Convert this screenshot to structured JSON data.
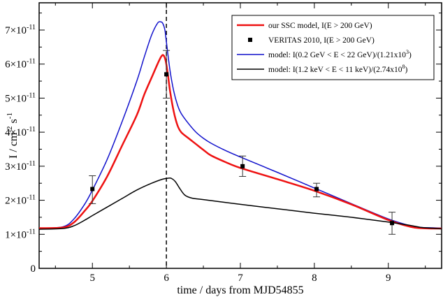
{
  "chart_data": {
    "type": "line",
    "xlabel": "time / days from MJD54855",
    "ylabel_main": "I / cm",
    "ylabel_sup1": "-2",
    "ylabel_mid": " s",
    "ylabel_sup2": "-1",
    "xlim": [
      4.28,
      9.72
    ],
    "ylim": [
      0,
      7.8
    ],
    "y_unit_exp": "-11",
    "x_ticks": [
      5,
      6,
      7,
      8,
      9
    ],
    "x_tick_labels": [
      "5",
      "6",
      "7",
      "8",
      "9"
    ],
    "y_ticks": [
      0,
      1,
      2,
      3,
      4,
      5,
      6,
      7
    ],
    "y_tick_labels": [
      "0",
      "1×10",
      "2×10",
      "3×10",
      "4×10",
      "5×10",
      "6×10",
      "7×10"
    ],
    "vline_x": 6.0,
    "legend": {
      "position": "top-right",
      "entries": [
        {
          "text": "our SSC model, I(E > 200 GeV)",
          "color": "#ee1111",
          "kind": "line"
        },
        {
          "text": "VERITAS 2010, I(E > 200 GeV)",
          "color": "#000000",
          "kind": "marker"
        },
        {
          "text": "model: I(0.2 GeV < E < 22 GeV)/(1.21x10",
          "sup": "3",
          "tail": ")",
          "color": "#1111cc",
          "kind": "line"
        },
        {
          "text": "model: I(1.2 keV < E < 11 keV)/(2.74x10",
          "sup": "8",
          "tail": ")",
          "color": "#000000",
          "kind": "line"
        }
      ]
    },
    "series": [
      {
        "color": "#1111cc",
        "width": 1.5,
        "x": [
          4.28,
          4.6,
          4.75,
          4.9,
          5.0,
          5.2,
          5.4,
          5.6,
          5.7,
          5.8,
          5.88,
          5.92,
          5.95,
          5.98,
          6.0,
          6.05,
          6.1,
          6.15,
          6.2,
          6.3,
          6.4,
          6.5,
          6.6,
          6.8,
          7.0,
          7.5,
          8.0,
          8.5,
          9.0,
          9.3,
          9.45,
          9.6,
          9.72
        ],
        "y": [
          1.18,
          1.22,
          1.45,
          1.9,
          2.3,
          3.2,
          4.3,
          5.5,
          6.2,
          6.85,
          7.2,
          7.24,
          7.2,
          7.0,
          6.65,
          5.8,
          5.2,
          4.8,
          4.55,
          4.25,
          4.0,
          3.82,
          3.68,
          3.46,
          3.27,
          2.82,
          2.36,
          1.9,
          1.45,
          1.25,
          1.2,
          1.19,
          1.18
        ]
      },
      {
        "color": "#ee1111",
        "width": 2.5,
        "x": [
          4.28,
          4.6,
          4.75,
          4.9,
          5.0,
          5.2,
          5.4,
          5.6,
          5.7,
          5.8,
          5.88,
          5.93,
          5.96,
          5.99,
          6.02,
          6.05,
          6.1,
          6.15,
          6.2,
          6.3,
          6.4,
          6.5,
          6.6,
          6.8,
          7.0,
          7.5,
          8.0,
          8.5,
          9.0,
          9.3,
          9.45,
          9.6,
          9.72
        ],
        "y": [
          1.18,
          1.2,
          1.35,
          1.7,
          1.98,
          2.7,
          3.6,
          4.5,
          5.1,
          5.6,
          6.0,
          6.22,
          6.26,
          6.1,
          5.7,
          5.2,
          4.6,
          4.2,
          4.0,
          3.82,
          3.65,
          3.48,
          3.32,
          3.12,
          2.95,
          2.62,
          2.28,
          1.88,
          1.42,
          1.22,
          1.18,
          1.17,
          1.17
        ]
      },
      {
        "color": "#000000",
        "width": 1.5,
        "x": [
          4.28,
          4.6,
          4.75,
          4.9,
          5.0,
          5.2,
          5.4,
          5.6,
          5.8,
          5.95,
          6.03,
          6.07,
          6.12,
          6.18,
          6.25,
          6.35,
          6.5,
          7.0,
          7.5,
          8.0,
          8.5,
          9.0,
          9.3,
          9.45,
          9.6,
          9.72
        ],
        "y": [
          1.15,
          1.17,
          1.25,
          1.42,
          1.55,
          1.8,
          2.05,
          2.3,
          2.5,
          2.62,
          2.65,
          2.64,
          2.55,
          2.35,
          2.15,
          2.06,
          2.02,
          1.88,
          1.75,
          1.62,
          1.5,
          1.36,
          1.26,
          1.2,
          1.18,
          1.16
        ]
      }
    ],
    "points": {
      "x": [
        5.0,
        6.0,
        7.03,
        8.03,
        9.05
      ],
      "y": [
        2.33,
        5.7,
        3.0,
        2.33,
        1.33
      ],
      "err_low": [
        1.9,
        5.0,
        2.7,
        2.1,
        1.0
      ],
      "err_high": [
        2.72,
        6.4,
        3.3,
        2.5,
        1.65
      ]
    }
  }
}
